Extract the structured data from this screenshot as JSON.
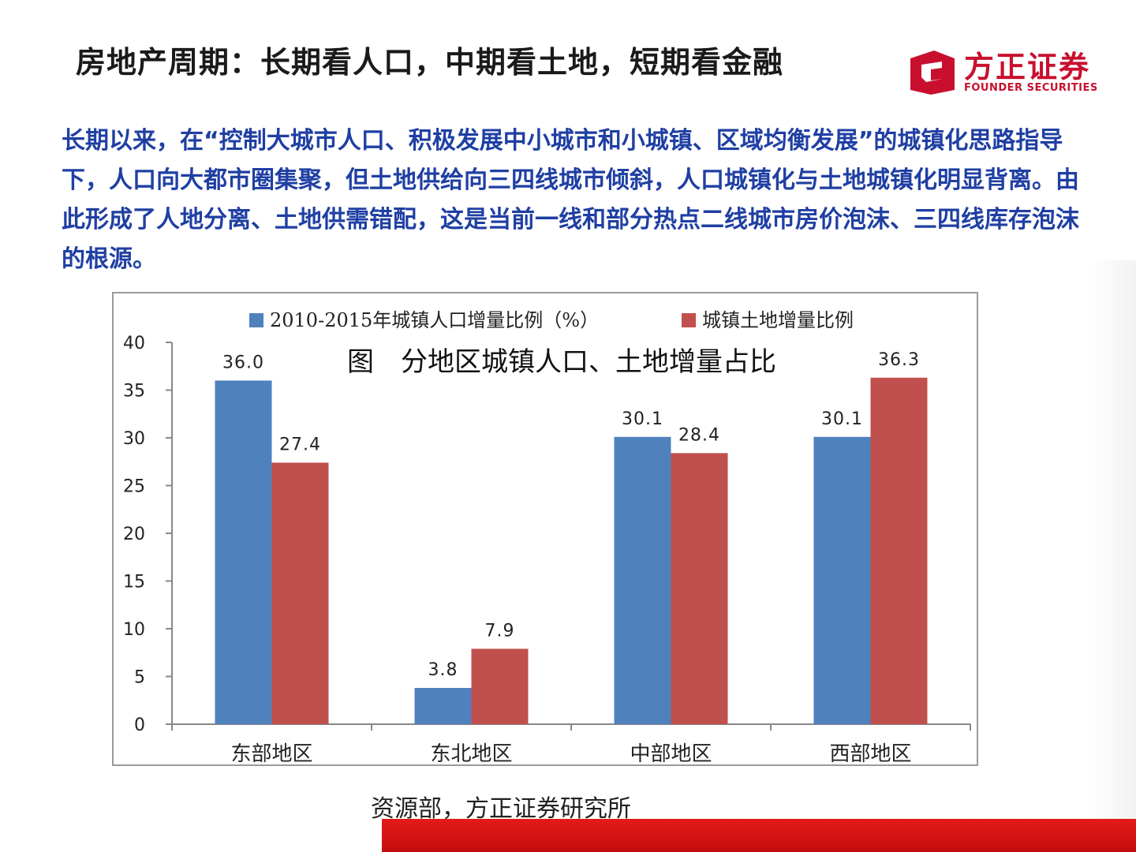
{
  "header": {
    "title": "房地产周期：长期看人口，中期看土地，短期看金融"
  },
  "logo": {
    "name_cn": "方正证券",
    "name_en": "FOUNDER SECURITIES",
    "brand_color": "#c8102e"
  },
  "intro": {
    "paragraph": "长期以来，在“控制大城市人口、积极发展中小城市和小城镇、区域均衡发展”的城镇化思路指导下，人口向大都市圈集聚，但土地供给向三四线城市倾斜，人口城镇化与土地城镇化明显背离。由此形成了人地分离、土地供需错配，这是当前一线和部分热点二线城市房价泡沫、三四线库存泡沫的根源。",
    "color": "#1f3fa3"
  },
  "chart_data": {
    "type": "bar",
    "title": "图　分地区城镇人口、土地增量占比",
    "categories": [
      "东部地区",
      "东北地区",
      "中部地区",
      "西部地区"
    ],
    "series": [
      {
        "name": "2010-2015年城镇人口增量比例（%）",
        "values": [
          36.0,
          3.8,
          30.1,
          30.1
        ],
        "color": "#4f81bd"
      },
      {
        "name": "城镇土地增量比例",
        "values": [
          27.4,
          7.9,
          28.4,
          36.3
        ],
        "color": "#c0504d"
      }
    ],
    "ylim": [
      0,
      40
    ],
    "yticks": [
      0,
      5,
      10,
      15,
      20,
      25,
      30,
      35,
      40
    ],
    "data_labels": true,
    "legend_position": "top",
    "grid": false
  },
  "source": {
    "text": "资源部，方正证券研究所"
  },
  "footer": {
    "band_color": "#d71414"
  }
}
